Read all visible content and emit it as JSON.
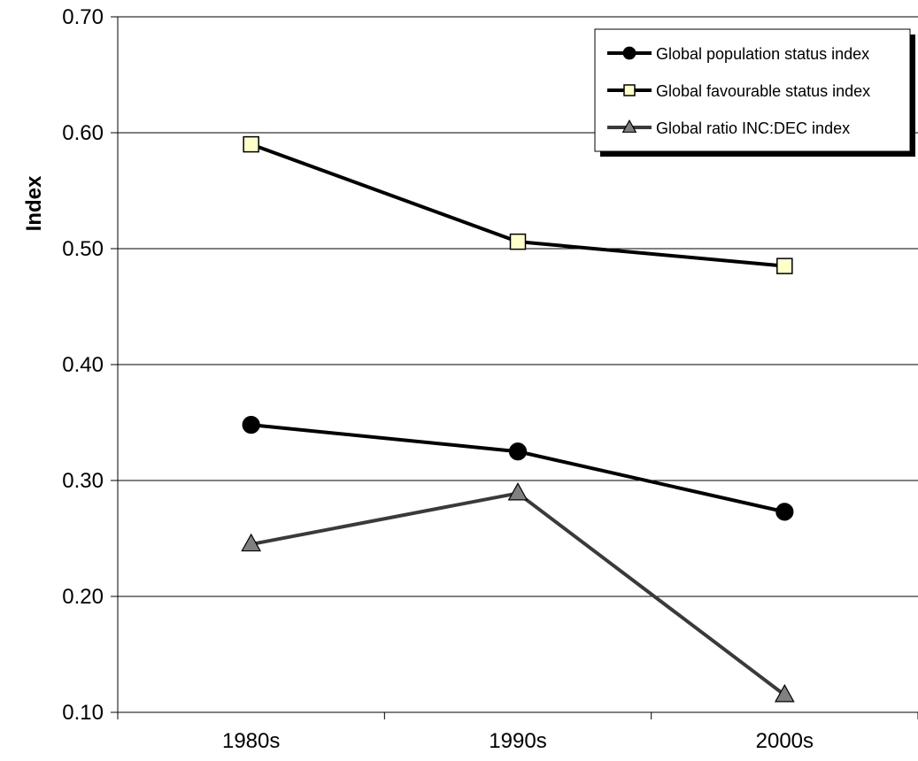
{
  "chart_data": {
    "type": "line",
    "title": "",
    "xlabel": "",
    "ylabel": "Index",
    "categories": [
      "1980s",
      "1990s",
      "2000s"
    ],
    "ylim": [
      0.1,
      0.7
    ],
    "yticks": [
      "0.10",
      "0.20",
      "0.30",
      "0.40",
      "0.50",
      "0.60",
      "0.70"
    ],
    "grid": "horizontal",
    "legend_position": "top-right",
    "series": [
      {
        "name": "Global population status index",
        "values": [
          0.348,
          0.325,
          0.273
        ],
        "color": "#000000",
        "marker": "circle",
        "marker_fill": "#000000"
      },
      {
        "name": "Global favourable status index",
        "values": [
          0.59,
          0.506,
          0.485
        ],
        "color": "#000000",
        "marker": "square",
        "marker_fill": "#ffffcc"
      },
      {
        "name": "Global ratio INC:DEC index",
        "values": [
          0.245,
          0.289,
          0.115
        ],
        "color": "#3a3a3a",
        "marker": "triangle",
        "marker_fill": "#808080"
      }
    ]
  }
}
